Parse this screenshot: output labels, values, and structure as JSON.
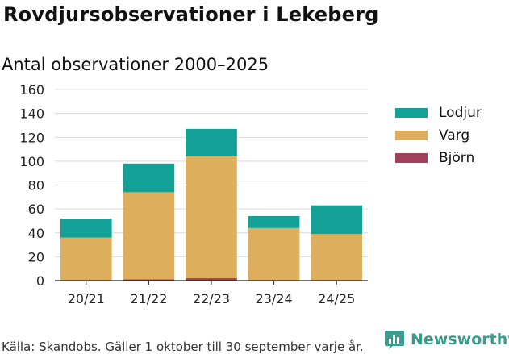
{
  "header": {
    "title": "Rovdjursobservationer i Lekeberg",
    "subtitle": "Antal observationer 2000–2025"
  },
  "chart_data": {
    "type": "bar",
    "stacked": true,
    "categories": [
      "20/21",
      "21/22",
      "22/23",
      "23/24",
      "24/25"
    ],
    "series": [
      {
        "name": "Björn",
        "color": "#a34059",
        "values": [
          0,
          1,
          2,
          0,
          0
        ]
      },
      {
        "name": "Varg",
        "color": "#ddaf5c",
        "values": [
          36,
          73,
          102,
          44,
          39
        ]
      },
      {
        "name": "Lodjur",
        "color": "#13a096",
        "values": [
          16,
          24,
          23,
          10,
          24
        ]
      }
    ],
    "legend_order": [
      "Lodjur",
      "Varg",
      "Björn"
    ],
    "ylim": [
      0,
      160
    ],
    "yticks": [
      0,
      20,
      40,
      60,
      80,
      100,
      120,
      140,
      160
    ],
    "grid": true,
    "legend_position": "right",
    "title": "Antal observationer 2000–2025",
    "xlabel": "",
    "ylabel": ""
  },
  "footer": {
    "source": "Källa: Skandobs. Gäller 1 oktober till 30 september varje år.",
    "brand": "Newsworthy"
  }
}
